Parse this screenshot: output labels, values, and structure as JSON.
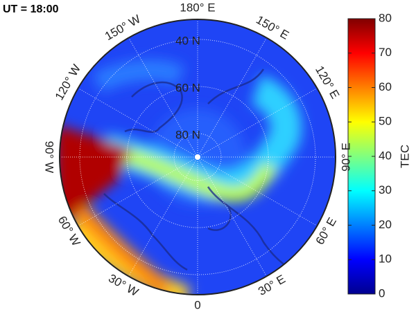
{
  "title": "UT = 18:00",
  "map": {
    "latitude_labels": [
      {
        "value": 40,
        "label": "40 N"
      },
      {
        "value": 60,
        "label": "60 N"
      },
      {
        "value": 80,
        "label": "80 N"
      }
    ],
    "longitude_labels": [
      {
        "value": 180,
        "label": "180° E"
      },
      {
        "value": 150,
        "label": "150° E"
      },
      {
        "value": 120,
        "label": "120° E"
      },
      {
        "value": 90,
        "label": "90° E"
      },
      {
        "value": 60,
        "label": "60° E"
      },
      {
        "value": 30,
        "label": "30° E"
      },
      {
        "value": 0,
        "label": "0"
      },
      {
        "value": -30,
        "label": "30° W"
      },
      {
        "value": -60,
        "label": "60° W"
      },
      {
        "value": -90,
        "label": "90° W"
      },
      {
        "value": -120,
        "label": "120° W"
      },
      {
        "value": -150,
        "label": "150° W"
      }
    ]
  },
  "colorbar": {
    "label": "TEC",
    "lim": [
      0,
      80
    ],
    "ticks": [
      0,
      10,
      20,
      30,
      40,
      50,
      60,
      70,
      80
    ]
  }
}
